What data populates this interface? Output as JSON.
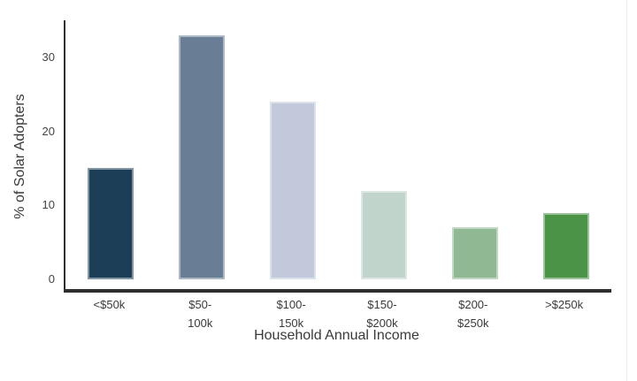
{
  "chart_data": {
    "type": "bar",
    "title": "",
    "categories": [
      "<$50k",
      "$50-\n100k",
      "$100-\n150k",
      "$150-\n$200k",
      "$200-\n$250k",
      ">$250k"
    ],
    "values": [
      15,
      33,
      24,
      12,
      7,
      9
    ],
    "xlabel": "Household Annual Income",
    "ylabel": "% of Solar Adopters",
    "yticks": [
      0,
      10,
      20,
      30
    ],
    "ylim": [
      0,
      35
    ],
    "grid": false,
    "legend": "none",
    "bar_colors": [
      "#1c3e57",
      "#697d94",
      "#c1c9da",
      "#c0d4cb",
      "#8fb893",
      "#4b9347"
    ],
    "axis_color": "#2e2e2e",
    "tick_text_color": "#444444",
    "title_text_color": "#3a3a3a",
    "background": "#ffffff",
    "right_divider_color": "#ececec"
  }
}
